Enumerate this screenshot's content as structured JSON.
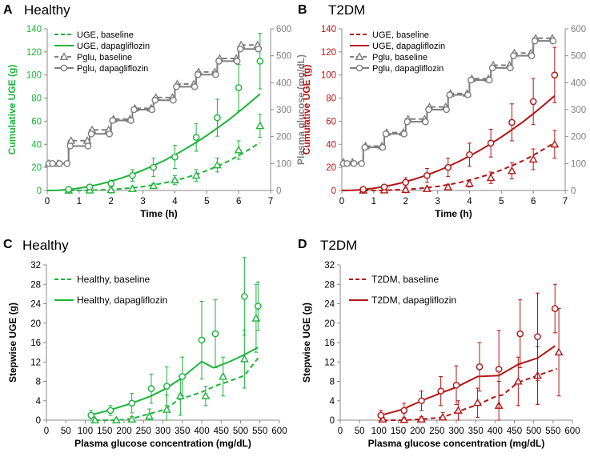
{
  "colors": {
    "healthy": "#1bb43a",
    "t2dm": "#b41414",
    "glucose": "#7f7f7f",
    "axis": "#888888",
    "text": "#000000"
  },
  "chart_data": [
    {
      "type": "line",
      "panel_letter": "A",
      "title": "Healthy",
      "xlabel": "Time (h)",
      "ylabel": "Cumulative UGE (g)",
      "y2label": "Plasma glucose (mg/dL)",
      "xlim": [
        0,
        7
      ],
      "ylim": [
        0,
        140
      ],
      "y2lim": [
        0,
        600
      ],
      "x_ticks": [
        "0",
        "1",
        "2",
        "3",
        "4",
        "5",
        "6",
        "7"
      ],
      "y_ticks": [
        "0",
        "20",
        "40",
        "60",
        "80",
        "100",
        "120",
        "140"
      ],
      "y2_ticks": [
        "0",
        "100",
        "200",
        "300",
        "400",
        "500",
        "600"
      ],
      "legend": [
        "UGE, baseline",
        "UGE, dapagliflozin",
        "Pglu, baseline",
        "Pglu, dapagliflozin"
      ],
      "series": [
        {
          "name": "UGE, baseline",
          "kind": "line",
          "dash": true,
          "axis": "left",
          "x": [
            0.67,
            1,
            1.33,
            1.67,
            2,
            2.33,
            2.67,
            3,
            3.33,
            3.67,
            4,
            4.33,
            4.67,
            5,
            5.33,
            5.67,
            6,
            6.33,
            6.67
          ],
          "y": [
            0,
            0,
            0.2,
            0.5,
            0.9,
            1.5,
            2.3,
            3.4,
            4.8,
            6.5,
            8.6,
            11.0,
            13.9,
            17.2,
            21.0,
            25.3,
            30.2,
            35.6,
            41.6
          ]
        },
        {
          "name": "UGE, baseline data",
          "kind": "markers",
          "marker": "triangle",
          "axis": "left",
          "x": [
            0.67,
            1.33,
            2.0,
            2.67,
            3.33,
            4.0,
            4.67,
            5.33,
            6.0,
            6.67
          ],
          "y": [
            0.1,
            0.2,
            0.5,
            1.5,
            4,
            9,
            13,
            22,
            35,
            56
          ],
          "err": [
            0.3,
            0.5,
            0.8,
            1.5,
            2,
            4,
            5,
            6,
            8,
            10
          ]
        },
        {
          "name": "UGE, dapagliflozin",
          "kind": "line",
          "dash": false,
          "axis": "left",
          "x": [
            0,
            0.33,
            0.67,
            1,
            1.33,
            1.67,
            2,
            2.33,
            2.67,
            3,
            3.33,
            3.67,
            4,
            4.33,
            4.67,
            5,
            5.33,
            5.67,
            6,
            6.33,
            6.67
          ],
          "y": [
            0,
            0.2,
            0.8,
            2,
            3.6,
            5.6,
            8,
            10.8,
            14,
            17.6,
            21.6,
            26,
            30.8,
            36,
            41.6,
            47.6,
            54,
            60.8,
            68,
            75.6,
            83.6
          ]
        },
        {
          "name": "UGE, dapagliflozin data",
          "kind": "markers",
          "marker": "circle",
          "axis": "left",
          "x": [
            0.67,
            1.33,
            2.0,
            2.67,
            3.33,
            4.0,
            4.67,
            5.33,
            6.0,
            6.67
          ],
          "y": [
            1,
            3,
            6,
            13,
            20,
            29,
            46,
            63,
            89,
            112
          ],
          "err": [
            1,
            2,
            3,
            5,
            8,
            10,
            12,
            16,
            20,
            24
          ]
        },
        {
          "name": "Pglu, baseline",
          "kind": "step",
          "dash": true,
          "axis": "right",
          "marker": "triangle",
          "x": [
            0,
            0.67,
            1.33,
            2.0,
            2.67,
            3.33,
            4.0,
            4.67,
            5.33,
            6.0,
            6.67
          ],
          "y": [
            100,
            185,
            225,
            265,
            305,
            345,
            395,
            440,
            490,
            540,
            540
          ]
        },
        {
          "name": "Pglu, dapagliflozin",
          "kind": "step",
          "dash": false,
          "axis": "right",
          "marker": "circle",
          "x": [
            0,
            0.33,
            0.67,
            1.33,
            2.0,
            2.67,
            3.33,
            4.0,
            4.67,
            5.33,
            6.0,
            6.67
          ],
          "y": [
            100,
            100,
            165,
            210,
            260,
            300,
            335,
            385,
            430,
            480,
            525,
            525
          ]
        }
      ]
    },
    {
      "type": "line",
      "panel_letter": "B",
      "title": "T2DM",
      "xlabel": "Time (h)",
      "ylabel": "Cumulative UGE (g)",
      "y2label": "Plasma glucose (mg/dL)",
      "xlim": [
        0,
        7
      ],
      "ylim": [
        0,
        140
      ],
      "y2lim": [
        0,
        600
      ],
      "x_ticks": [
        "0",
        "1",
        "2",
        "3",
        "4",
        "5",
        "6",
        "7"
      ],
      "y_ticks": [
        "0",
        "20",
        "40",
        "60",
        "80",
        "100",
        "120",
        "140"
      ],
      "y2_ticks": [
        "0",
        "100",
        "200",
        "300",
        "400",
        "500",
        "600"
      ],
      "legend": [
        "UGE, baseline",
        "UGE, dapagliflozin",
        "Pglu, baseline",
        "Pglu, dapagliflozin"
      ],
      "series": [
        {
          "name": "UGE, baseline",
          "kind": "line",
          "dash": true,
          "axis": "left",
          "x": [
            0.67,
            1,
            1.33,
            1.67,
            2,
            2.33,
            2.67,
            3,
            3.33,
            3.67,
            4,
            4.33,
            4.67,
            5,
            5.33,
            5.67,
            6,
            6.33,
            6.67
          ],
          "y": [
            0,
            0,
            0.2,
            0.5,
            0.9,
            1.5,
            2.4,
            3.5,
            5,
            6.8,
            9,
            11.5,
            14.4,
            17.7,
            21.5,
            25.7,
            30.5,
            35.8,
            41.5
          ]
        },
        {
          "name": "UGE, baseline data",
          "kind": "markers",
          "marker": "triangle",
          "axis": "left",
          "x": [
            0.67,
            1.33,
            2.0,
            2.67,
            3.33,
            4.0,
            4.67,
            5.33,
            6.0,
            6.67
          ],
          "y": [
            0.1,
            0.3,
            0.7,
            1.5,
            3,
            6,
            11,
            17,
            27,
            40
          ],
          "err": [
            0.3,
            0.5,
            0.8,
            1.2,
            2,
            3,
            5,
            7,
            9,
            12
          ]
        },
        {
          "name": "UGE, dapagliflozin",
          "kind": "line",
          "dash": false,
          "axis": "left",
          "x": [
            0,
            0.33,
            0.67,
            1,
            1.33,
            1.67,
            2,
            2.33,
            2.67,
            3,
            3.33,
            3.67,
            4,
            4.33,
            4.67,
            5,
            5.33,
            5.67,
            6,
            6.33,
            6.67
          ],
          "y": [
            0,
            0.2,
            0.8,
            1.9,
            3.4,
            5.3,
            7.6,
            10.3,
            13.4,
            16.9,
            20.8,
            25.1,
            29.8,
            34.9,
            40.4,
            46.3,
            52.6,
            59.3,
            66.4,
            74,
            82
          ]
        },
        {
          "name": "UGE, dapagliflozin data",
          "kind": "markers",
          "marker": "circle",
          "axis": "left",
          "x": [
            0.67,
            1.33,
            2.0,
            2.67,
            3.33,
            4.0,
            4.67,
            5.33,
            6.0,
            6.67
          ],
          "y": [
            1,
            3,
            7,
            13,
            20,
            31,
            41,
            59,
            77,
            100
          ],
          "err": [
            1,
            2,
            4,
            6,
            8,
            10,
            12,
            16,
            20,
            24
          ]
        },
        {
          "name": "Pglu, baseline",
          "kind": "step",
          "dash": true,
          "axis": "right",
          "marker": "triangle",
          "x": [
            0,
            0.67,
            1.33,
            2.0,
            2.67,
            3.33,
            4.0,
            4.67,
            5.33,
            6.0,
            6.67
          ],
          "y": [
            105,
            165,
            215,
            265,
            310,
            360,
            415,
            465,
            510,
            565,
            565
          ]
        },
        {
          "name": "Pglu, dapagliflozin",
          "kind": "step",
          "dash": false,
          "axis": "right",
          "marker": "circle",
          "x": [
            0,
            0.33,
            0.67,
            1.33,
            2.0,
            2.67,
            3.33,
            4.0,
            4.67,
            5.33,
            6.0,
            6.67
          ],
          "y": [
            100,
            100,
            160,
            210,
            255,
            300,
            355,
            410,
            455,
            500,
            555,
            555
          ]
        }
      ]
    },
    {
      "type": "line",
      "panel_letter": "C",
      "title": "Healthy",
      "xlabel": "Plasma glucose concentration (mg/dL)",
      "ylabel": "Stepwise UGE (g)",
      "xlim": [
        0,
        600
      ],
      "ylim": [
        0,
        32
      ],
      "x_ticks": [
        "0",
        "50",
        "100",
        "150",
        "200",
        "250",
        "300",
        "350",
        "400",
        "450",
        "500",
        "550",
        "600"
      ],
      "y_ticks": [
        "0",
        "4",
        "8",
        "12",
        "16",
        "20",
        "24",
        "28",
        "32"
      ],
      "legend": [
        "Healthy, baseline",
        "Healthy, dapagliflozin"
      ],
      "series": [
        {
          "name": "Healthy, baseline",
          "kind": "line",
          "dash": true,
          "x": [
            125,
            180,
            220,
            260,
            305,
            340,
            400,
            440,
            470,
            510,
            545
          ],
          "y": [
            0,
            0,
            0.3,
            1.2,
            2.2,
            4.2,
            5.8,
            7.2,
            8,
            9.2,
            12.8
          ]
        },
        {
          "name": "Healthy, baseline data",
          "kind": "markers",
          "marker": "triangle",
          "x": [
            125,
            180,
            220,
            265,
            310,
            345,
            410,
            455,
            510,
            540
          ],
          "y": [
            0,
            0,
            0.2,
            0.8,
            2.2,
            5,
            5,
            9,
            12.6,
            21
          ],
          "err": [
            0.3,
            0.3,
            0.5,
            1.5,
            3,
            4,
            2,
            4,
            6,
            7
          ]
        },
        {
          "name": "Healthy, dapagliflozin",
          "kind": "line",
          "dash": false,
          "x": [
            110,
            160,
            220,
            270,
            305,
            345,
            400,
            430,
            470,
            510,
            545
          ],
          "y": [
            1,
            2,
            3.5,
            5,
            6.4,
            8.5,
            12.1,
            10.8,
            12,
            13.5,
            15
          ]
        },
        {
          "name": "Healthy, dapagliflozin data",
          "kind": "markers",
          "marker": "circle",
          "x": [
            115,
            165,
            220,
            270,
            310,
            350,
            400,
            435,
            510,
            545
          ],
          "y": [
            1,
            2,
            3.5,
            6.5,
            7,
            9,
            16.5,
            17.8,
            25.5,
            23.5
          ],
          "err": [
            1,
            1,
            2,
            3,
            4,
            4,
            8,
            7,
            8,
            5
          ]
        }
      ]
    },
    {
      "type": "line",
      "panel_letter": "D",
      "title": "T2DM",
      "xlabel": "Plasma glucose concentration (mg/dL)",
      "ylabel": "Stepwise UGE (g)",
      "xlim": [
        0,
        600
      ],
      "ylim": [
        0,
        32
      ],
      "x_ticks": [
        "0",
        "50",
        "100",
        "150",
        "200",
        "250",
        "300",
        "350",
        "400",
        "450",
        "500",
        "550",
        "600"
      ],
      "y_ticks": [
        "0",
        "4",
        "8",
        "12",
        "16",
        "20",
        "24",
        "28",
        "32"
      ],
      "legend": [
        "T2DM, baseline",
        "T2DM, dapagliflozin"
      ],
      "series": [
        {
          "name": "T2DM, baseline",
          "kind": "line",
          "dash": true,
          "x": [
            110,
            165,
            210,
            265,
            305,
            355,
            405,
            420,
            460,
            510,
            560
          ],
          "y": [
            0,
            0,
            0.2,
            0.6,
            1.8,
            3.2,
            5,
            5.2,
            7.8,
            9.2,
            10.6
          ]
        },
        {
          "name": "T2DM, baseline data",
          "kind": "markers",
          "marker": "triangle",
          "x": [
            110,
            165,
            210,
            265,
            305,
            355,
            410,
            460,
            510,
            565
          ],
          "y": [
            0.2,
            0.1,
            0.2,
            0.6,
            2,
            3.6,
            3,
            8,
            9.2,
            14
          ],
          "err": [
            0.4,
            0.3,
            0.5,
            1,
            2,
            3,
            5,
            5,
            6,
            9
          ]
        },
        {
          "name": "T2DM, dapagliflozin",
          "kind": "line",
          "dash": false,
          "x": [
            105,
            160,
            210,
            260,
            300,
            355,
            410,
            460,
            510,
            555
          ],
          "y": [
            1,
            2.2,
            4,
            5.6,
            6.8,
            9,
            9.2,
            11.5,
            12.8,
            15.3
          ]
        },
        {
          "name": "T2DM, dapagliflozin data",
          "kind": "markers",
          "marker": "circle",
          "x": [
            105,
            165,
            210,
            260,
            300,
            360,
            410,
            465,
            510,
            555
          ],
          "y": [
            1,
            2,
            4,
            6,
            7.2,
            11,
            10.5,
            17.8,
            17.2,
            23
          ],
          "err": [
            1,
            1.5,
            2,
            3,
            4,
            5,
            8,
            7,
            9,
            5
          ]
        }
      ]
    }
  ]
}
